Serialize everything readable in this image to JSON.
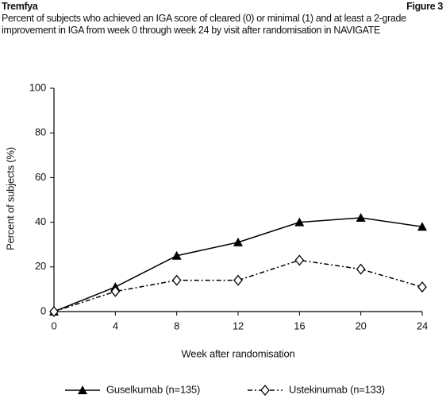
{
  "header": {
    "title": "Tremfya",
    "figure_label": "Figure 3",
    "subtitle": "Percent of subjects who achieved an IGA score of cleared (0) or minimal (1) and at least a 2-grade improvement in IGA from week 0 through week 24 by visit after randomisation in NAVIGATE"
  },
  "chart_data": {
    "type": "line",
    "x_label": "Week after randomisation",
    "y_label": "Percent of subjects (%)",
    "x": [
      0,
      4,
      8,
      12,
      16,
      20,
      24
    ],
    "series": [
      {
        "name": "Guselkumab (n=135)",
        "color": "#000000",
        "linestyle": "solid",
        "marker": "triangle",
        "values": [
          0,
          11,
          25,
          31,
          40,
          42,
          38
        ]
      },
      {
        "name": "Ustekinumab (n=133)",
        "color": "#000000",
        "linestyle": "dashdot",
        "marker": "diamond-open",
        "values": [
          0,
          9,
          14,
          14,
          23,
          19,
          11
        ]
      }
    ],
    "xlim": [
      0,
      24
    ],
    "xticks": [
      0,
      4,
      8,
      12,
      16,
      20,
      24
    ],
    "ylim": [
      0,
      100
    ],
    "yticks": [
      0,
      20,
      40,
      60,
      80,
      100
    ],
    "legend": "bottom",
    "grid": false
  }
}
